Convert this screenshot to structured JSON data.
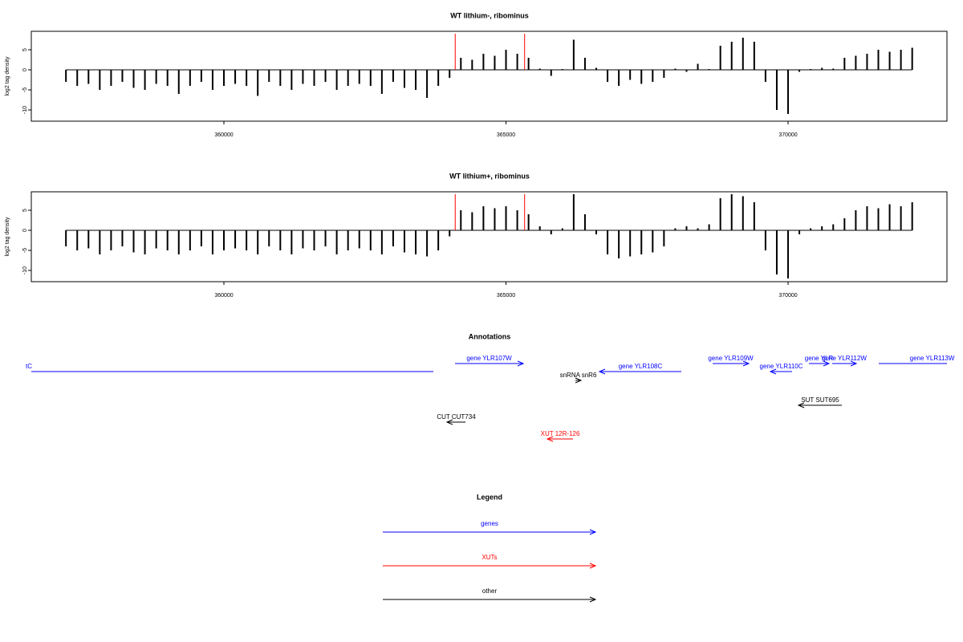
{
  "chart_data": [
    {
      "type": "bar",
      "title": "WT lithium-, ribominus",
      "y_label": "log2 tag density",
      "x": [
        357200,
        357400,
        357600,
        357800,
        358000,
        358200,
        358400,
        358600,
        358800,
        359000,
        359200,
        359400,
        359600,
        359800,
        360000,
        360200,
        360400,
        360600,
        360800,
        361000,
        361200,
        361400,
        361600,
        361800,
        362000,
        362200,
        362400,
        362600,
        362800,
        363000,
        363200,
        363400,
        363600,
        363800,
        364000,
        364200,
        364400,
        364600,
        364800,
        365000,
        365200,
        365400,
        365600,
        365800,
        366000,
        366200,
        366400,
        366600,
        366800,
        367000,
        367200,
        367400,
        367600,
        367800,
        368000,
        368200,
        368400,
        368600,
        368800,
        369000,
        369200,
        369400,
        369600,
        369800,
        370000,
        370200,
        370400,
        370600,
        370800,
        371000,
        371200,
        371400,
        371600,
        371800,
        372000,
        372200
      ],
      "values": [
        -3,
        -4,
        -3.5,
        -5,
        -4,
        -3,
        -4.5,
        -5,
        -3.5,
        -4,
        -6,
        -4,
        -3,
        -5,
        -4,
        -3.5,
        -4,
        -6.5,
        -3,
        -4,
        -5,
        -3.5,
        -4,
        -3,
        -5,
        -4,
        -3.5,
        -4,
        -6,
        -3,
        -4.5,
        -5,
        -7,
        -4,
        -2,
        3,
        2.5,
        4,
        3.5,
        5,
        4,
        3,
        0.3,
        -1.5,
        0.2,
        7.5,
        3,
        0.5,
        -3,
        -4,
        -2.5,
        -3.5,
        -3,
        -2,
        0.3,
        -0.5,
        1.5,
        0.2,
        6,
        7,
        8,
        7,
        -3,
        -10,
        -11,
        -0.5,
        0.2,
        0.5,
        0.3,
        3,
        3.5,
        4,
        5,
        4.5,
        5,
        5.5
      ],
      "color": "#000000",
      "markers": {
        "x": [
          364100,
          365330
        ],
        "color": "#ff0000"
      },
      "xlim": [
        356586,
        372816
      ],
      "xticks": [
        360000,
        365000,
        370000
      ],
      "ylim": [
        -12.8,
        9.6
      ],
      "yticks": [
        5,
        0,
        -5,
        -10
      ]
    },
    {
      "type": "bar",
      "title": "WT lithium+, ribominus",
      "y_label": "log2 tag density",
      "x": [
        357200,
        357400,
        357600,
        357800,
        358000,
        358200,
        358400,
        358600,
        358800,
        359000,
        359200,
        359400,
        359600,
        359800,
        360000,
        360200,
        360400,
        360600,
        360800,
        361000,
        361200,
        361400,
        361600,
        361800,
        362000,
        362200,
        362400,
        362600,
        362800,
        363000,
        363200,
        363400,
        363600,
        363800,
        364000,
        364200,
        364400,
        364600,
        364800,
        365000,
        365200,
        365400,
        365600,
        365800,
        366000,
        366200,
        366400,
        366600,
        366800,
        367000,
        367200,
        367400,
        367600,
        367800,
        368000,
        368200,
        368400,
        368600,
        368800,
        369000,
        369200,
        369400,
        369600,
        369800,
        370000,
        370200,
        370400,
        370600,
        370800,
        371000,
        371200,
        371400,
        371600,
        371800,
        372000,
        372200
      ],
      "values": [
        -4,
        -5,
        -4.5,
        -6,
        -5,
        -4,
        -5.5,
        -6,
        -4.5,
        -5,
        -6,
        -5,
        -4,
        -6,
        -5,
        -4.5,
        -5,
        -6,
        -4,
        -5,
        -6,
        -4.5,
        -5,
        -4,
        -6,
        -5,
        -4.5,
        -5,
        -6,
        -4,
        -5.5,
        -6,
        -6.5,
        -5,
        -1.5,
        5,
        4.5,
        6,
        5.5,
        6,
        5,
        4,
        1,
        -1,
        0.5,
        9,
        4,
        -1,
        -6,
        -7,
        -6.5,
        -6,
        -5.5,
        -4,
        0.5,
        1,
        0.5,
        1.5,
        8,
        9,
        8.5,
        7,
        -5,
        -11,
        -12,
        -1,
        0.5,
        1,
        1.5,
        3,
        5,
        6,
        5.5,
        6.5,
        6,
        7
      ],
      "color": "#000000",
      "markers": {
        "x": [
          364100,
          365330
        ],
        "color": "#ff0000"
      },
      "xlim": [
        356586,
        372816
      ],
      "xticks": [
        360000,
        365000,
        370000
      ],
      "ylim": [
        -12.8,
        9.6
      ],
      "yticks": [
        5,
        0,
        -5,
        -10
      ]
    }
  ],
  "annotations": {
    "title": "Annotations",
    "features": [
      {
        "label": "tC",
        "start": 349374,
        "end": 363713,
        "strand": "-",
        "color": "#0000ff"
      },
      {
        "label": "gene YLR107W",
        "start": 364097,
        "end": 365306,
        "strand": "+",
        "color": "#0000ff"
      },
      {
        "label": "gene YLR108C",
        "start": 366657,
        "end": 368108,
        "strand": "-",
        "color": "#0000ff"
      },
      {
        "label": "snRNA snR6",
        "start": 366230,
        "end": 366330,
        "strand": "+",
        "color": "#000000"
      },
      {
        "label": "gene YLR109W",
        "start": 368663,
        "end": 369303,
        "strand": "+",
        "color": "#0000ff"
      },
      {
        "label": "gene YLR110C",
        "start": 369687,
        "end": 370071,
        "strand": "-",
        "color": "#0000ff"
      },
      {
        "label": "gene YLR",
        "start": 370370,
        "end": 370725,
        "strand": "+",
        "color": "#0000ff"
      },
      {
        "label": "gene YLR112W",
        "start": 370782,
        "end": 371209,
        "strand": "+",
        "color": "#0000ff"
      },
      {
        "label": "gene YLR113W",
        "start": 371607,
        "end": 373500,
        "strand": "+",
        "color": "#0000ff"
      },
      {
        "label": "SUT SUT695",
        "start": 370185,
        "end": 370953,
        "strand": "-",
        "color": "#000000"
      },
      {
        "label": "CUT CUT734",
        "start": 363954,
        "end": 364282,
        "strand": "-",
        "color": "#000000"
      },
      {
        "label": "XUT 12R-126",
        "start": 365733,
        "end": 366188,
        "strand": "-",
        "color": "#ff0000"
      }
    ]
  },
  "legend": {
    "title": "Legend",
    "items": [
      {
        "label": "genes",
        "color": "#0000ff"
      },
      {
        "label": "XUTs",
        "color": "#ff0000"
      },
      {
        "label": "other",
        "color": "#000000"
      }
    ]
  }
}
